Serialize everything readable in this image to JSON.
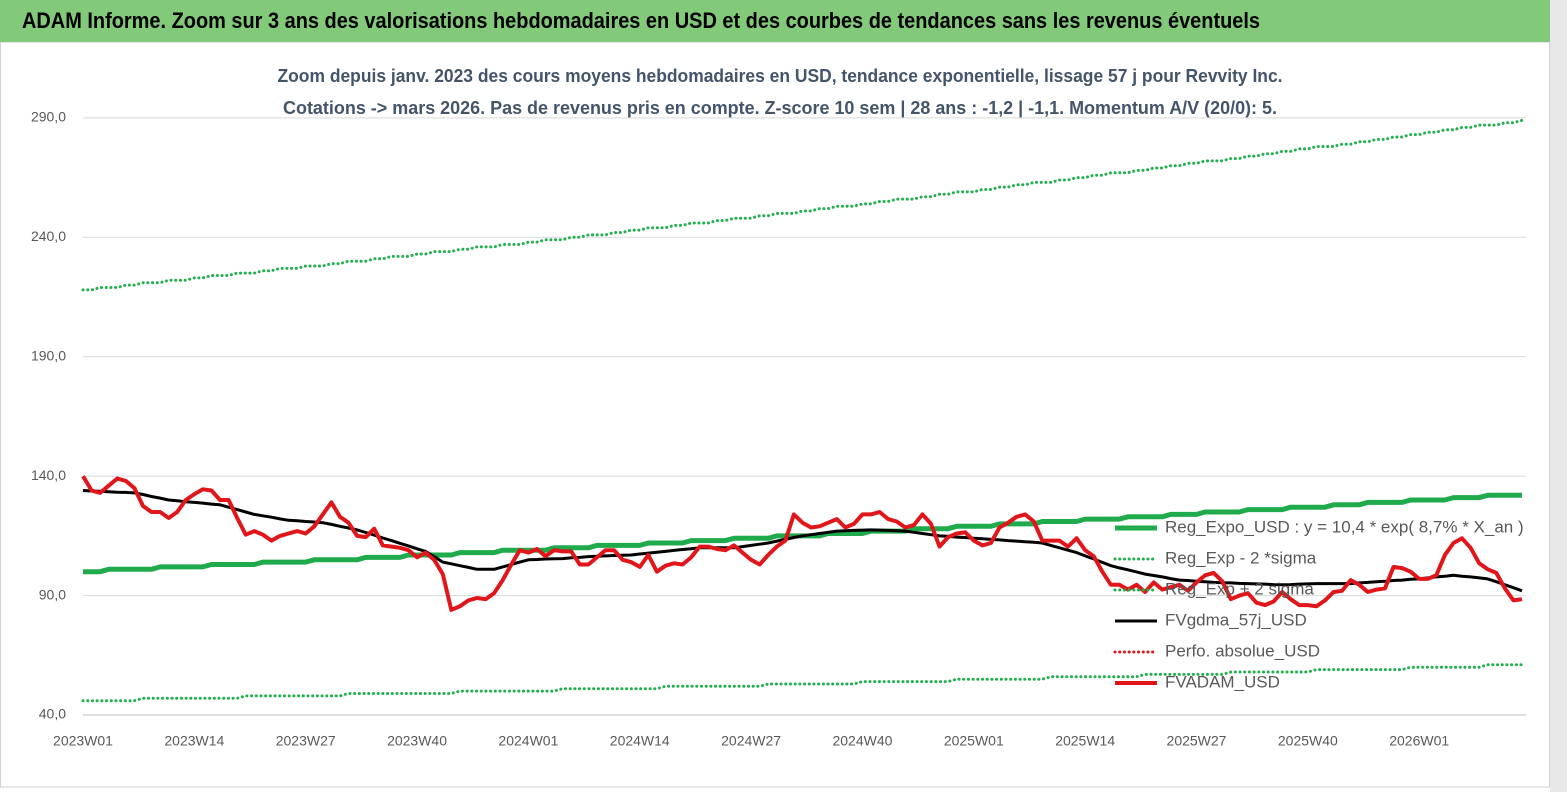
{
  "chart_data": {
    "type": "line",
    "title": "ADAM Informe. Zoom sur 3 ans des valorisations hebdomadaires en USD et des courbes de tendances sans les revenus éventuels",
    "subtitle": [
      "Zoom depuis janv. 2023 des cours moyens hebdomadaires en USD, tendance exponentielle, lissage 57 j pour Revvity Inc.",
      "Cotations -> mars 2026. Pas de revenus pris en  compte. Z-score 10 sem  | 28 ans : -1,2 | -1,1. Momentum A/V (20/0): 5."
    ],
    "categories": [
      "2023W01",
      null,
      null,
      null,
      null,
      null,
      null,
      null,
      null,
      null,
      null,
      null,
      null,
      "2023W14",
      null,
      null,
      null,
      null,
      null,
      null,
      null,
      null,
      null,
      null,
      null,
      null,
      "2023W27",
      null,
      null,
      null,
      null,
      null,
      null,
      null,
      null,
      null,
      null,
      null,
      null,
      "2023W40",
      null,
      null,
      null,
      null,
      null,
      null,
      null,
      null,
      null,
      null,
      null,
      null,
      "2024W01",
      null,
      null,
      null,
      null,
      null,
      null,
      null,
      null,
      null,
      null,
      null,
      null,
      "2024W14",
      null,
      null,
      null,
      null,
      null,
      null,
      null,
      null,
      null,
      null,
      null,
      null,
      "2024W27",
      null,
      null,
      null,
      null,
      null,
      null,
      null,
      null,
      null,
      null,
      null,
      null,
      "2024W40",
      null,
      null,
      null,
      null,
      null,
      null,
      null,
      null,
      null,
      null,
      null,
      null,
      "2025W01",
      null,
      null,
      null,
      null,
      null,
      null,
      null,
      null,
      null,
      null,
      null,
      null,
      "2025W14",
      null,
      null,
      null,
      null,
      null,
      null,
      null,
      null,
      null,
      null,
      null,
      null,
      "2025W27",
      null,
      null,
      null,
      null,
      null,
      null,
      null,
      null,
      null,
      null,
      null,
      null,
      "2025W40",
      null,
      null,
      null,
      null,
      null,
      null,
      null,
      null,
      null,
      null,
      null,
      null,
      "2026W01",
      null,
      null,
      null,
      null,
      null,
      null,
      null,
      null,
      null,
      null,
      null,
      null
    ],
    "ylim": [
      40,
      300
    ],
    "yticks": [
      {
        "value": 40,
        "label": "40,0"
      },
      {
        "value": 90,
        "label": "90,0"
      },
      {
        "value": 140,
        "label": "140,0"
      },
      {
        "value": 190,
        "label": "190,0"
      },
      {
        "value": 240,
        "label": "240,0"
      },
      {
        "value": 290,
        "label": "290,0"
      }
    ],
    "grid": true,
    "legend": "right",
    "series": [
      {
        "name": "Reg_Expo_USD : y = 10,4 * exp( 8,7% *  X_an )",
        "color": "#1faa4b",
        "style": "solid",
        "width": 5,
        "values": [
          100,
          100,
          100,
          101,
          101,
          101,
          101,
          101,
          101,
          102,
          102,
          102,
          102,
          102,
          102,
          103,
          103,
          103,
          103,
          103,
          103,
          104,
          104,
          104,
          104,
          104,
          104,
          105,
          105,
          105,
          105,
          105,
          105,
          106,
          106,
          106,
          106,
          106,
          107,
          107,
          107,
          107,
          107,
          107,
          108,
          108,
          108,
          108,
          108,
          109,
          109,
          109,
          109,
          109,
          109,
          110,
          110,
          110,
          110,
          110,
          111,
          111,
          111,
          111,
          111,
          111,
          112,
          112,
          112,
          112,
          112,
          113,
          113,
          113,
          113,
          113,
          114,
          114,
          114,
          114,
          114,
          115,
          115,
          115,
          115,
          115,
          115,
          116,
          116,
          116,
          116,
          116,
          117,
          117,
          117,
          117,
          117,
          118,
          118,
          118,
          118,
          118,
          119,
          119,
          119,
          119,
          119,
          120,
          120,
          120,
          120,
          120,
          121,
          121,
          121,
          121,
          121,
          122,
          122,
          122,
          122,
          122,
          123,
          123,
          123,
          123,
          123,
          124,
          124,
          124,
          124,
          125,
          125,
          125,
          125,
          125,
          126,
          126,
          126,
          126,
          126,
          127,
          127,
          127,
          127,
          127,
          128,
          128,
          128,
          128,
          129,
          129,
          129,
          129,
          129,
          130,
          130,
          130,
          130,
          130,
          131,
          131,
          131,
          131,
          132,
          132,
          132,
          132,
          132
        ]
      },
      {
        "name": "Reg_Exp - 2 *sigma",
        "color": "#22b04e",
        "style": "dotted",
        "width": 3,
        "values": [
          46,
          46,
          46,
          46,
          46,
          46,
          46,
          47,
          47,
          47,
          47,
          47,
          47,
          47,
          47,
          47,
          47,
          47,
          47,
          48,
          48,
          48,
          48,
          48,
          48,
          48,
          48,
          48,
          48,
          48,
          48,
          49,
          49,
          49,
          49,
          49,
          49,
          49,
          49,
          49,
          49,
          49,
          49,
          49,
          50,
          50,
          50,
          50,
          50,
          50,
          50,
          50,
          50,
          50,
          50,
          50,
          51,
          51,
          51,
          51,
          51,
          51,
          51,
          51,
          51,
          51,
          51,
          51,
          52,
          52,
          52,
          52,
          52,
          52,
          52,
          52,
          52,
          52,
          52,
          52,
          53,
          53,
          53,
          53,
          53,
          53,
          53,
          53,
          53,
          53,
          53,
          54,
          54,
          54,
          54,
          54,
          54,
          54,
          54,
          54,
          54,
          54,
          55,
          55,
          55,
          55,
          55,
          55,
          55,
          55,
          55,
          55,
          55,
          56,
          56,
          56,
          56,
          56,
          56,
          56,
          56,
          56,
          56,
          56,
          57,
          57,
          57,
          57,
          57,
          57,
          57,
          57,
          57,
          57,
          58,
          58,
          58,
          58,
          58,
          58,
          58,
          58,
          58,
          58,
          59,
          59,
          59,
          59,
          59,
          59,
          59,
          59,
          59,
          59,
          59,
          60,
          60,
          60,
          60,
          60,
          60,
          60,
          60,
          60,
          61,
          61,
          61,
          61,
          61
        ]
      },
      {
        "name": "Reg_Exp + 2 sigma",
        "color": "#22b04e",
        "style": "dotted",
        "width": 3,
        "values": [
          218,
          218,
          219,
          219,
          219,
          220,
          220,
          221,
          221,
          221,
          222,
          222,
          222,
          223,
          223,
          224,
          224,
          224,
          225,
          225,
          225,
          226,
          226,
          227,
          227,
          227,
          228,
          228,
          228,
          229,
          229,
          230,
          230,
          230,
          231,
          231,
          232,
          232,
          232,
          233,
          233,
          234,
          234,
          234,
          235,
          235,
          236,
          236,
          236,
          237,
          237,
          237,
          238,
          238,
          239,
          239,
          239,
          240,
          240,
          241,
          241,
          241,
          242,
          242,
          243,
          243,
          244,
          244,
          244,
          245,
          245,
          246,
          246,
          246,
          247,
          247,
          248,
          248,
          248,
          249,
          249,
          250,
          250,
          250,
          251,
          251,
          252,
          252,
          253,
          253,
          253,
          254,
          254,
          255,
          255,
          256,
          256,
          256,
          257,
          257,
          258,
          258,
          259,
          259,
          259,
          260,
          260,
          261,
          261,
          262,
          262,
          263,
          263,
          263,
          264,
          264,
          265,
          265,
          266,
          266,
          267,
          267,
          267,
          268,
          268,
          269,
          269,
          270,
          270,
          271,
          271,
          272,
          272,
          272,
          273,
          273,
          274,
          274,
          275,
          275,
          276,
          276,
          277,
          277,
          278,
          278,
          278,
          279,
          279,
          280,
          280,
          281,
          281,
          282,
          282,
          283,
          283,
          284,
          284,
          285,
          285,
          286,
          286,
          287,
          287,
          287,
          288,
          288,
          289
        ]
      },
      {
        "name": "FVgdma_57j_USD",
        "color": "#000000",
        "style": "solid",
        "width": 3,
        "values": [
          134,
          133.8,
          133.7,
          133.5,
          133.3,
          133.2,
          133,
          132.3,
          131.5,
          130.8,
          130,
          129.7,
          129.3,
          129,
          128.7,
          128.3,
          128,
          127,
          126,
          125,
          124,
          123.4,
          122.8,
          122.1,
          121.5,
          121.3,
          121,
          120.8,
          120.5,
          119.8,
          119,
          118.3,
          117.5,
          116.4,
          115.3,
          114.1,
          113,
          111.9,
          110.8,
          109.6,
          108.5,
          106.3,
          104,
          103.3,
          102.5,
          101.8,
          101,
          101,
          101,
          102,
          103,
          104,
          105,
          105.1,
          105.3,
          105.4,
          105.5,
          105.8,
          106,
          106.3,
          106.5,
          106.6,
          106.8,
          106.9,
          107,
          107.4,
          107.8,
          108.1,
          108.5,
          108.9,
          109.3,
          109.6,
          110,
          110,
          110,
          110,
          110,
          110.5,
          111,
          111.5,
          112,
          112.8,
          113.5,
          114.3,
          115,
          115.5,
          116,
          116.5,
          117,
          117.1,
          117.3,
          117.4,
          117.5,
          117.4,
          117.3,
          117.1,
          117,
          116.5,
          116,
          115.5,
          115,
          114.8,
          114.5,
          114.3,
          114,
          113.8,
          113.5,
          113.3,
          113,
          112.8,
          112.5,
          112.3,
          112,
          111,
          110,
          109,
          108,
          106.6,
          105.3,
          103.9,
          102.5,
          101.6,
          100.8,
          99.9,
          99,
          98.4,
          97.8,
          97.1,
          96.5,
          96.3,
          96,
          95.8,
          95.5,
          95.4,
          95.3,
          95.1,
          95,
          94.9,
          94.8,
          94.6,
          94.5,
          94.6,
          94.8,
          94.9,
          95,
          95,
          95,
          95,
          95,
          95.3,
          95.5,
          95.8,
          96,
          96.3,
          96.5,
          96.8,
          97,
          97.4,
          97.8,
          98.1,
          98.5,
          98.1,
          97.8,
          97.4,
          97,
          95.8,
          94.5,
          93.3,
          92
        ]
      },
      {
        "name": "Perfo. absolue_USD",
        "color": "#e0161b",
        "style": "dotted",
        "width": 3,
        "values": [
          null,
          null,
          null,
          null,
          null,
          null,
          null,
          null,
          null,
          null,
          null,
          null,
          null,
          null,
          null,
          null,
          null,
          null,
          null,
          null,
          null,
          null,
          null,
          null,
          null,
          null,
          null,
          null,
          null,
          null,
          null,
          null,
          null,
          null,
          null,
          null,
          null,
          null,
          null,
          null,
          null,
          null,
          null,
          null,
          null,
          null,
          null,
          null,
          null,
          null,
          null,
          null,
          null,
          null,
          null,
          null,
          null,
          null,
          null,
          null,
          null,
          null,
          null,
          null,
          null,
          null,
          null,
          null,
          null,
          null,
          null,
          null,
          null,
          null,
          null,
          null,
          null,
          null,
          null,
          null,
          null,
          null,
          null,
          null,
          null,
          null,
          null,
          null,
          null,
          null,
          null,
          null,
          null,
          null,
          null,
          null,
          null,
          null,
          null,
          null,
          null,
          null,
          null,
          null,
          null,
          null,
          null,
          null,
          null,
          null,
          null,
          null,
          null,
          null,
          null,
          null,
          null,
          null,
          null,
          null,
          null,
          null,
          null,
          null,
          null,
          null,
          null,
          null,
          null,
          null,
          null,
          null,
          null,
          null,
          null,
          null,
          null,
          null,
          null,
          null,
          null,
          null,
          null,
          null,
          null,
          null,
          null,
          null,
          null,
          null,
          null,
          null,
          null,
          null,
          null,
          null,
          null,
          null,
          null,
          null,
          null,
          null,
          null,
          null,
          null,
          null,
          null,
          null,
          null
        ]
      },
      {
        "name": "FVADAM_USD",
        "color": "#e0161b",
        "style": "solid",
        "width": 4,
        "values": [
          140,
          134,
          133,
          136,
          139,
          138,
          135,
          127.5,
          125,
          125,
          122.5,
          125,
          130,
          132.5,
          134.5,
          134,
          130,
          130,
          122.5,
          115.5,
          117,
          115.5,
          113,
          115,
          116,
          117,
          116,
          119,
          124,
          129,
          123,
          120.5,
          115,
          114.5,
          118,
          111,
          110.5,
          110,
          109,
          106,
          108,
          105,
          99,
          84,
          85.5,
          88,
          89,
          88.5,
          91,
          96.5,
          103,
          109,
          108,
          109.5,
          106.5,
          109,
          108.5,
          108.5,
          103,
          103,
          106,
          109,
          109,
          105,
          104,
          102,
          107,
          100,
          102.5,
          103.5,
          103,
          106,
          110.5,
          110.5,
          109.5,
          109,
          111,
          108,
          105,
          103,
          107,
          110.5,
          113,
          124,
          120.5,
          118.5,
          119,
          120.5,
          122,
          118.5,
          120,
          124,
          124,
          125,
          122,
          121,
          118.5,
          119.5,
          124,
          120,
          110.5,
          114.5,
          116,
          116.5,
          113,
          111,
          112,
          118.5,
          120.5,
          123,
          124,
          121,
          113,
          113,
          113,
          110.5,
          114,
          109,
          106.5,
          100,
          94.5,
          94.5,
          92.5,
          94.5,
          91.5,
          95.5,
          92.5,
          93.5,
          94.5,
          92,
          95.5,
          98.5,
          99.5,
          96,
          88.5,
          90,
          91,
          87,
          86,
          87.5,
          91.5,
          88.5,
          86,
          86,
          85.5,
          88,
          91.5,
          92,
          96.5,
          94.5,
          91.5,
          92.5,
          93,
          102,
          101.5,
          100,
          97,
          97,
          98.5,
          107,
          112,
          114,
          110,
          103.5,
          101,
          99.5,
          93,
          88,
          88.5
        ]
      }
    ]
  }
}
